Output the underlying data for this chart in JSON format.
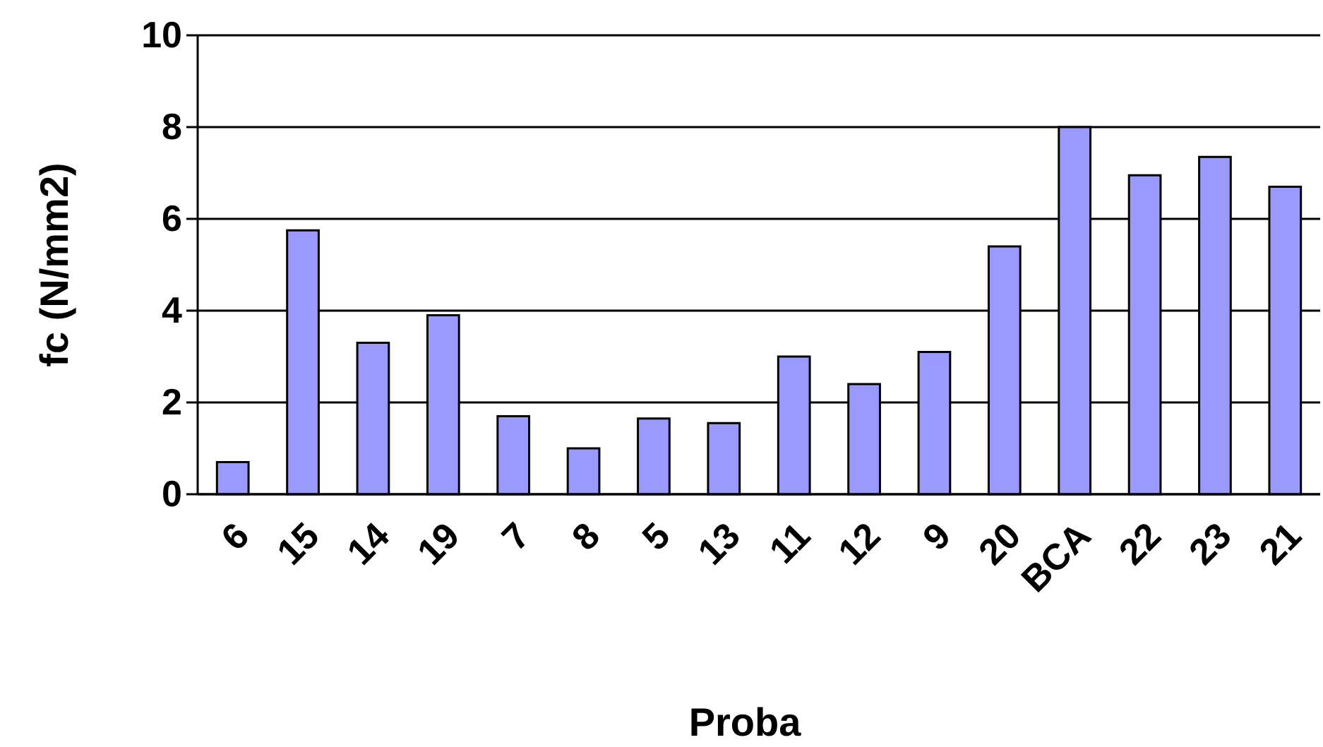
{
  "chart_data": {
    "type": "bar",
    "xlabel": "Proba",
    "ylabel": "fc (N/mm2)",
    "categories": [
      "6",
      "15",
      "14",
      "19",
      "7",
      "8",
      "5",
      "13",
      "11",
      "12",
      "9",
      "20",
      "BCA",
      "22",
      "23",
      "21"
    ],
    "values": [
      0.7,
      5.75,
      3.3,
      3.9,
      1.7,
      1.0,
      1.65,
      1.55,
      3.0,
      2.4,
      3.1,
      5.4,
      8.0,
      6.95,
      7.35,
      6.7
    ],
    "color": "#9999ff",
    "ylim": [
      0,
      10
    ],
    "yticks": [
      0,
      2,
      4,
      6,
      8,
      10
    ],
    "grid": "y"
  }
}
